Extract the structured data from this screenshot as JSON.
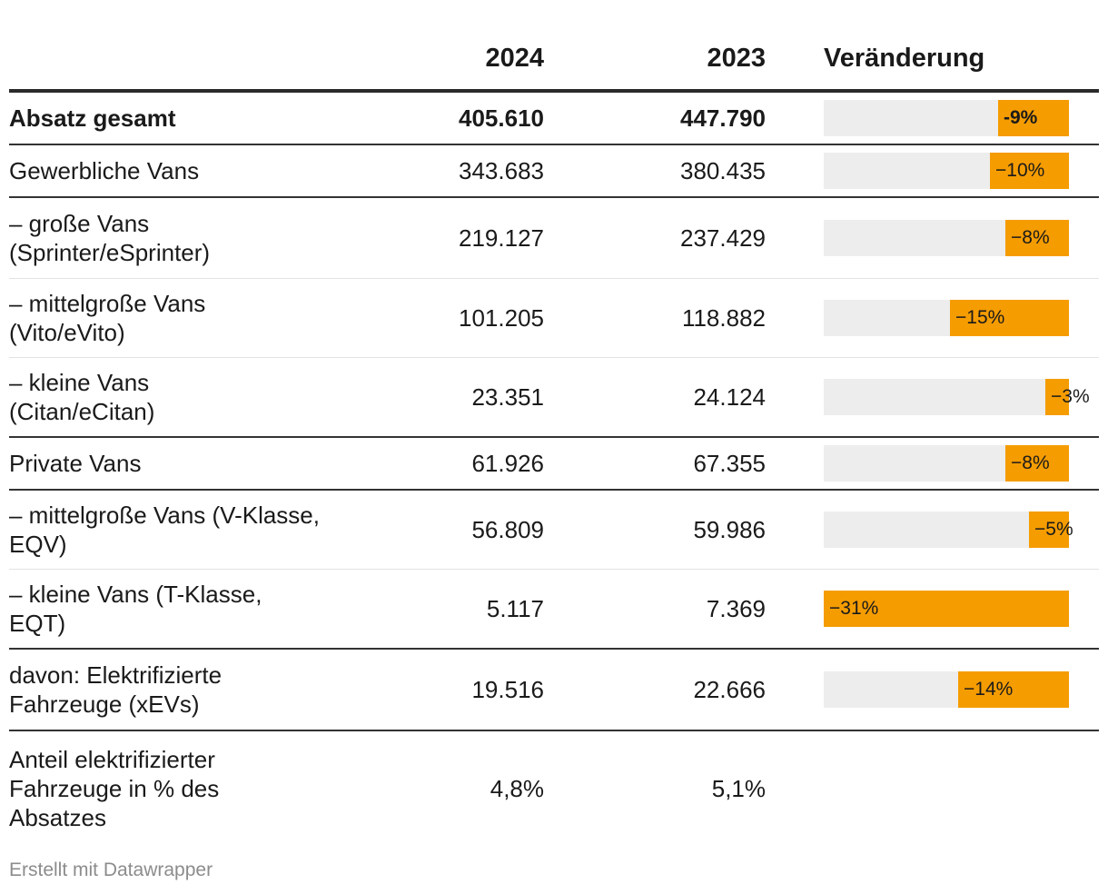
{
  "chart_data": {
    "type": "table",
    "columns": [
      "",
      "2024",
      "2023",
      "Veränderung"
    ],
    "rows": [
      {
        "label": "Absatz gesamt",
        "v2024": "405.610",
        "v2023": "447.790",
        "change": -9,
        "change_label": "-9%"
      },
      {
        "label": "Gewerbliche Vans",
        "v2024": "343.683",
        "v2023": "380.435",
        "change": -10,
        "change_label": "−10%"
      },
      {
        "label": "– große Vans (Sprinter/eSprinter)",
        "v2024": "219.127",
        "v2023": "237.429",
        "change": -8,
        "change_label": "−8%"
      },
      {
        "label": "– mittelgroße Vans (Vito/eVito)",
        "v2024": "101.205",
        "v2023": "118.882",
        "change": -15,
        "change_label": "−15%"
      },
      {
        "label": "– kleine Vans (Citan/eCitan)",
        "v2024": "23.351",
        "v2023": "24.124",
        "change": -3,
        "change_label": "−3%"
      },
      {
        "label": "Private Vans",
        "v2024": "61.926",
        "v2023": "67.355",
        "change": -8,
        "change_label": "−8%"
      },
      {
        "label": "– mittelgroße Vans (V-Klasse, EQV)",
        "v2024": "56.809",
        "v2023": "59.986",
        "change": -5,
        "change_label": "−5%"
      },
      {
        "label": "– kleine Vans (T-Klasse, EQT)",
        "v2024": "5.117",
        "v2023": "7.369",
        "change": -31,
        "change_label": "−31%"
      },
      {
        "label": "davon: Elektrifizierte Fahrzeuge (xEVs)",
        "v2024": "19.516",
        "v2023": "22.666",
        "change": -14,
        "change_label": "−14%"
      },
      {
        "label": "Anteil elektrifizierter Fahrzeuge in % des Absatzes",
        "v2024": "4,8%",
        "v2023": "5,1%",
        "change": null,
        "change_label": ""
      }
    ],
    "bar_range": [
      -31,
      0
    ],
    "colors": {
      "bar": "#f59c00",
      "track": "#ededed"
    }
  },
  "footer": "Erstellt mit Datawrapper"
}
